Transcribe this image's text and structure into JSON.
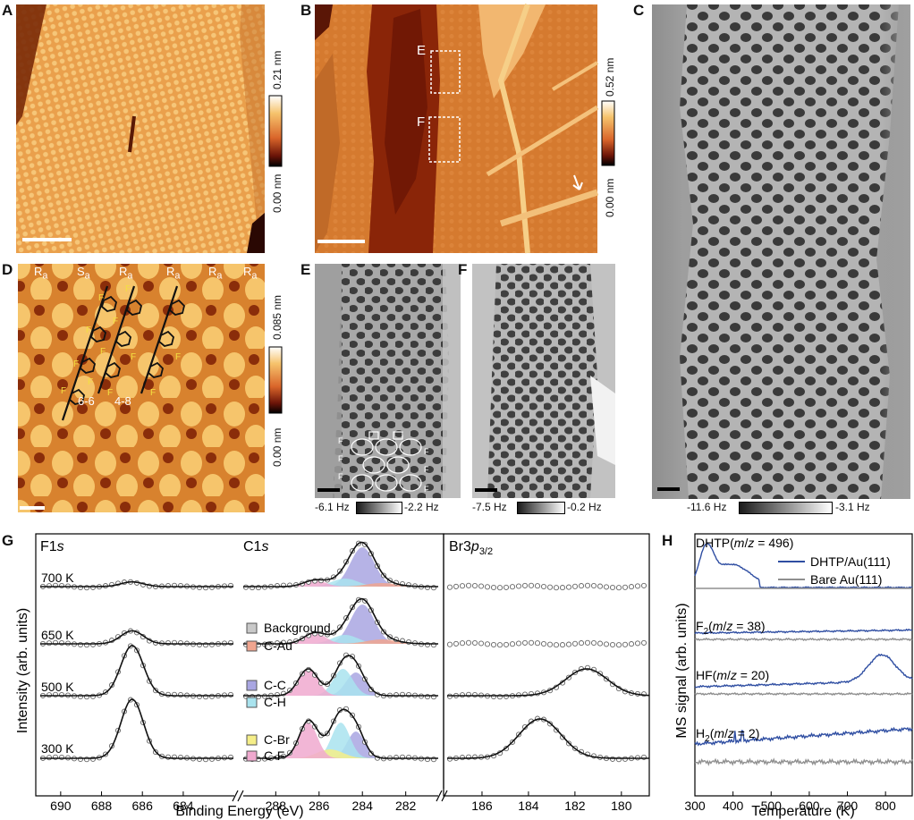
{
  "panels": {
    "A": {
      "letter": "A",
      "cbar_top": "0.21 nm",
      "cbar_bottom": "0.00 nm"
    },
    "B": {
      "letter": "B",
      "cbar_top": "0.52 nm",
      "cbar_bottom": "0.00 nm",
      "box_e": "E",
      "box_f": "F"
    },
    "C": {
      "letter": "C",
      "hz_left": "-11.6 Hz",
      "hz_right": "-3.1 Hz"
    },
    "D": {
      "letter": "D",
      "cbar_top": "0.085 nm",
      "cbar_bottom": "0.00 nm",
      "row_labels": [
        "R",
        "S",
        "R",
        "R",
        "R",
        "R"
      ],
      "row_subs": [
        "a",
        "a",
        "a",
        "a",
        "a",
        "a"
      ],
      "ring_labels": [
        "6-6",
        "4-8"
      ]
    },
    "E": {
      "letter": "E",
      "hz_left": "-6.1 Hz",
      "hz_right": "-2.2 Hz",
      "f_label": "F"
    },
    "F": {
      "letter": "F",
      "hz_left": "-7.5 Hz",
      "hz_right": "-0.2 Hz"
    },
    "G": {
      "letter": "G"
    },
    "H": {
      "letter": "H"
    }
  },
  "colors": {
    "afm_light": "#f7c873",
    "afm_mid": "#e08a2c",
    "afm_dark": "#5a1206",
    "cc": "#a9a6e2",
    "ch": "#a9e3ee",
    "cau": "#f0a58f",
    "cbr": "#f5ee88",
    "cf": "#f0a9cf",
    "bg": "#c9c9c9",
    "dhtp": "#2f4ea2",
    "bare": "#8f8f8f"
  },
  "chart_data": [
    {
      "type": "line",
      "panel": "G",
      "subplots": [
        {
          "title": "F1",
          "title_italic": "s",
          "x_ticks": [
            690,
            688,
            686,
            684
          ]
        },
        {
          "title": "C1",
          "title_italic": "s",
          "x_ticks": [
            288,
            286,
            284,
            282
          ]
        },
        {
          "title": "Br3",
          "title_italic": "p",
          "title_sub": "3/2",
          "x_ticks": [
            186,
            184,
            182,
            180
          ]
        }
      ],
      "xlabel": "Binding Energy (eV)",
      "ylabel": "Intensity (arb. units)",
      "temperature_labels": [
        "700 K",
        "650 K",
        "500 K",
        "300 K"
      ],
      "legend": [
        "Background",
        "C-Au",
        "C-C",
        "C-H",
        "C-Br",
        "C-F"
      ],
      "peaks": {
        "F1s": {
          "center": 686.5,
          "heights_relative": [
            0.08,
            0.22,
            0.85,
            1.0
          ]
        },
        "C1s_CC": {
          "center": 284.0
        },
        "C1s_CH": {
          "center": 284.8
        },
        "C1s_CF": {
          "center": 286.5
        },
        "Br3p": {
          "center_500K": 181.5,
          "center_300K": 183.5
        }
      }
    },
    {
      "type": "line",
      "panel": "H",
      "xlabel": "Temperature (K)",
      "ylabel": "MS signal (arb. units)",
      "x_ticks": [
        300,
        400,
        500,
        600,
        700,
        800
      ],
      "xlim": [
        300,
        870
      ],
      "series": [
        {
          "name": "DHTP/Au(111)"
        },
        {
          "name": "Bare Au(111)"
        }
      ],
      "traces": [
        {
          "label": "DHTP",
          "mz": "496"
        },
        {
          "label": "F",
          "sub": "2",
          "mz": "38"
        },
        {
          "label": "HF",
          "mz": "20"
        },
        {
          "label": "H",
          "sub": "2",
          "mz": "2"
        }
      ],
      "dhtp_peak": {
        "x": 330
      },
      "hf_peak": {
        "x": 790
      }
    }
  ]
}
